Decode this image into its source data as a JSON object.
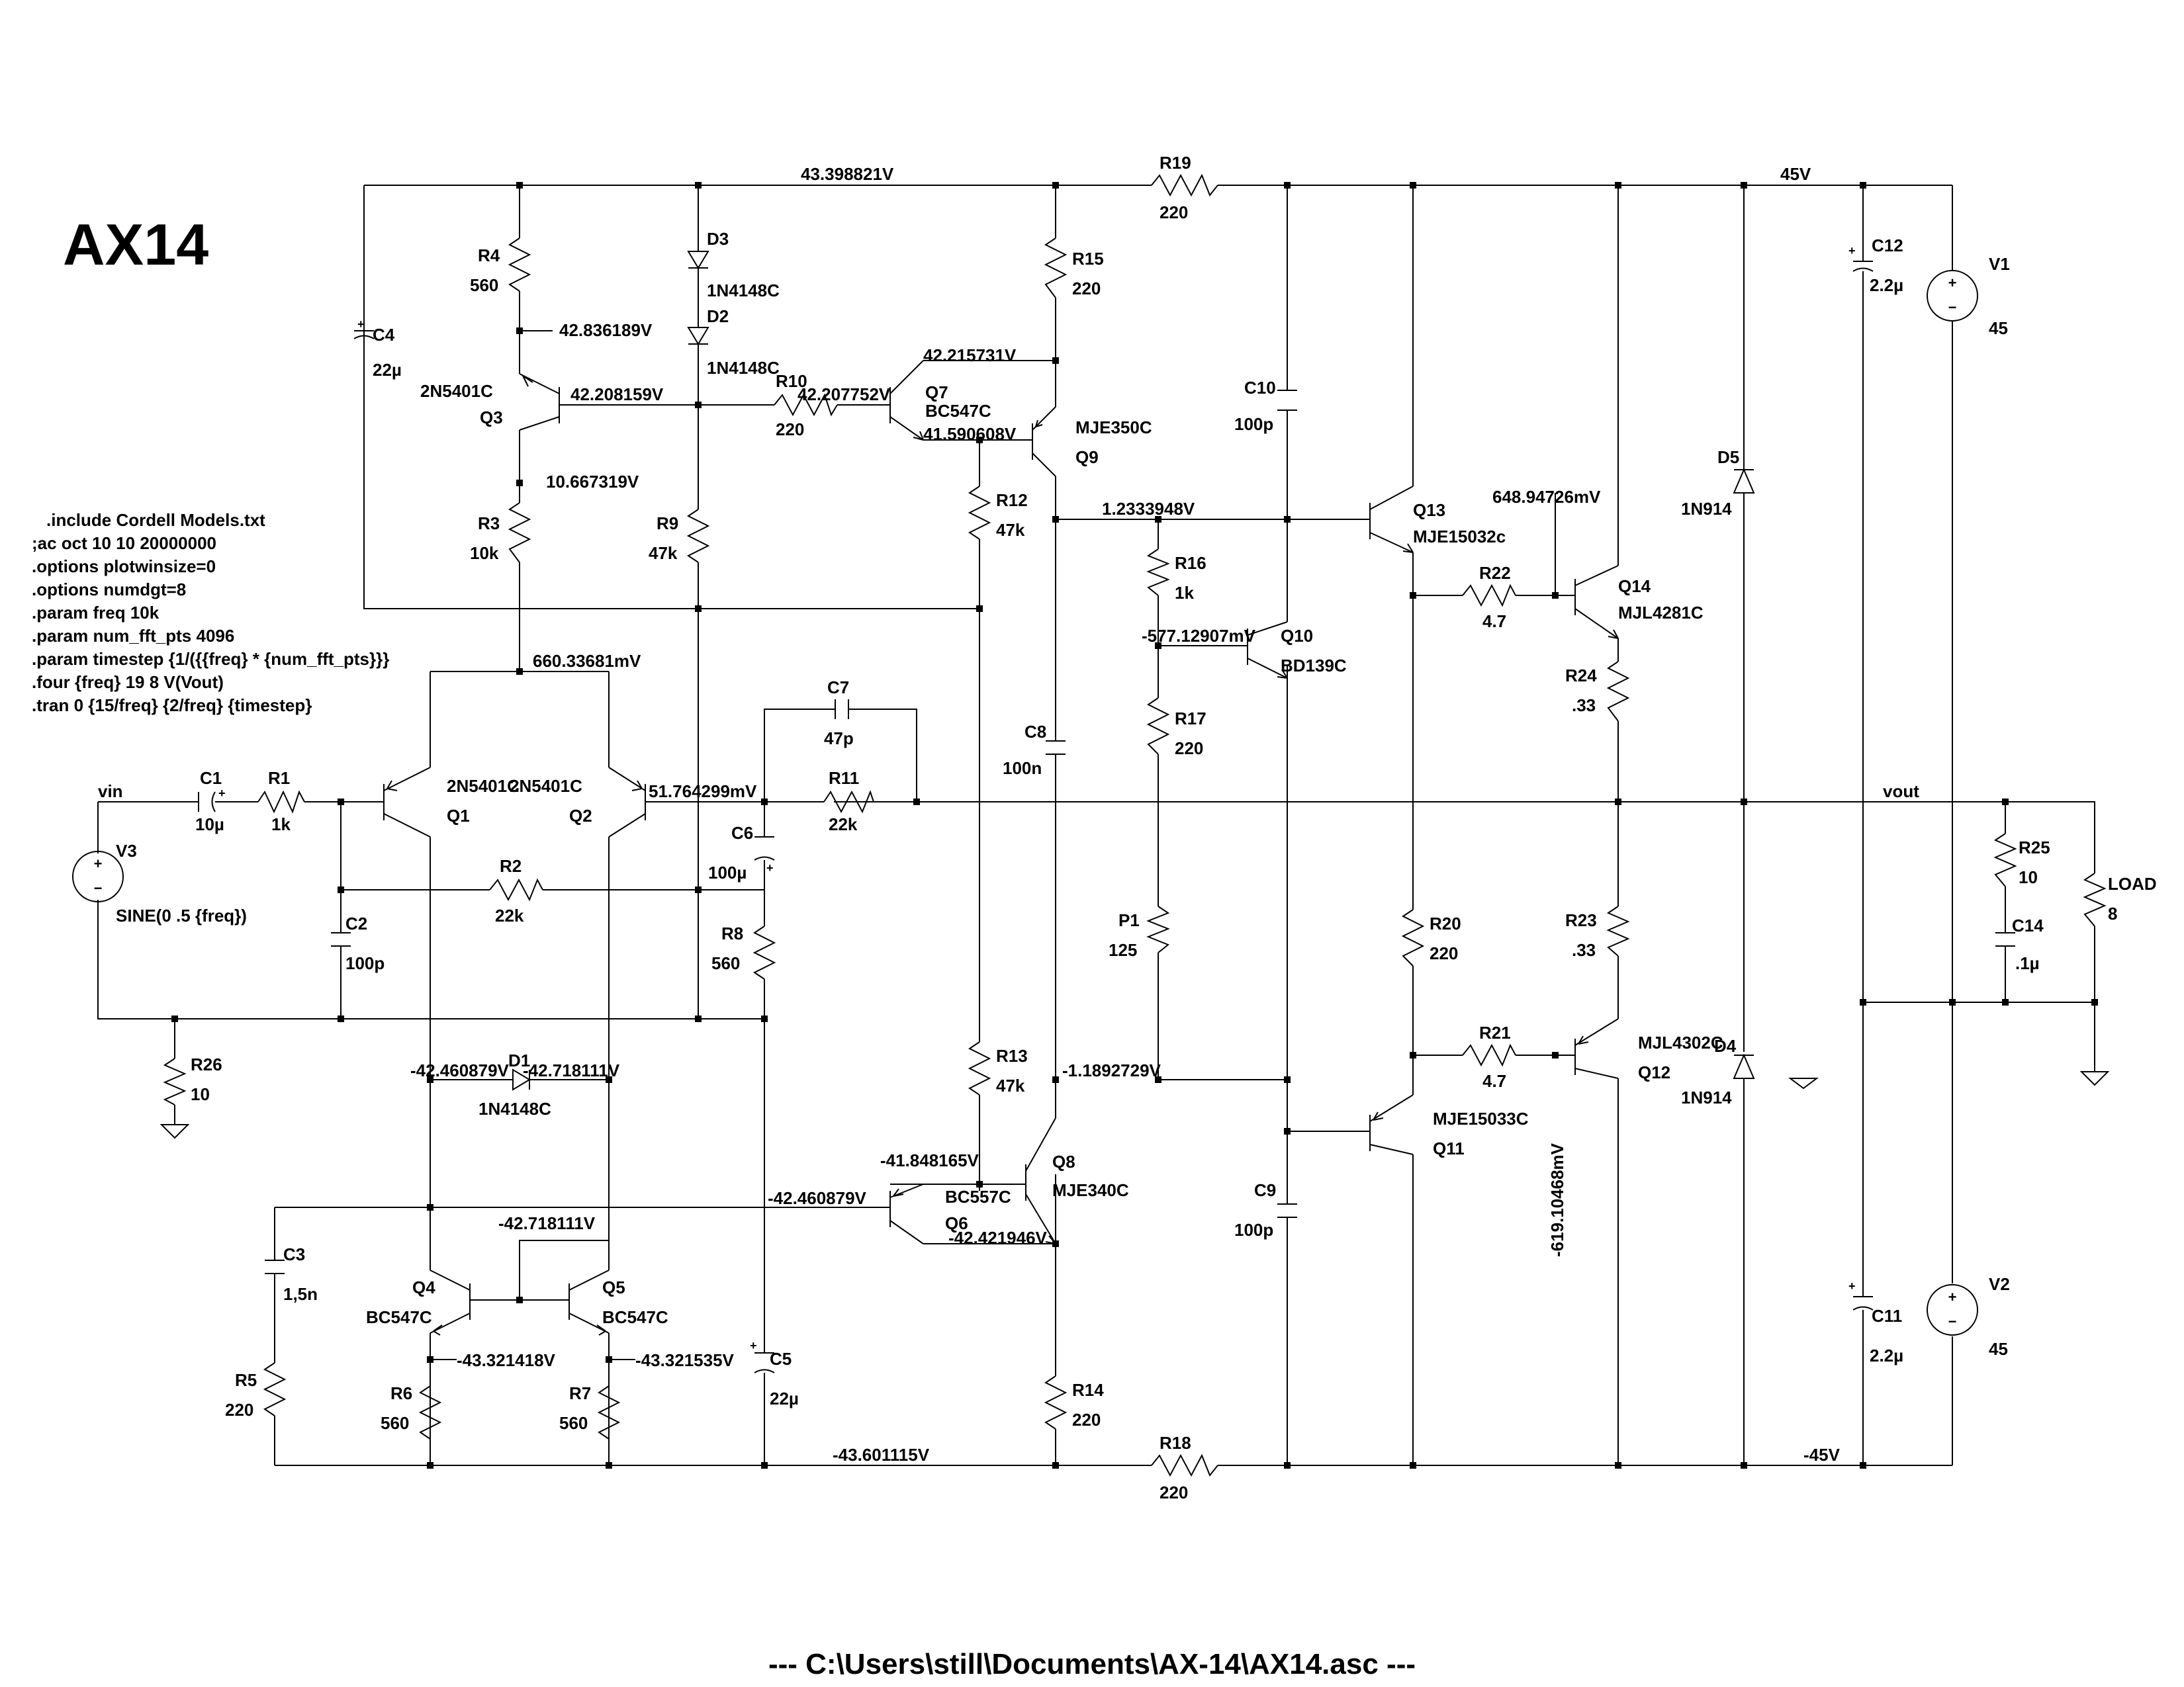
{
  "title": "AX14",
  "footer": "---  C:\\Users\\still\\Documents\\AX-14\\AX14.asc  ---",
  "directives": [
    ".include Cordell Models.txt",
    ";ac oct 10 10 20000000",
    ".options plotwinsize=0",
    ".options numdgt=8",
    ".param freq 10k",
    ".param num_fft_pts 4096",
    ".param timestep {1/({{freq} * {num_fft_pts}}}",
    ".four {freq} 19 8 V(Vout)",
    ".tran 0 {15/freq} {2/freq} {timestep}"
  ],
  "components": {
    "R4": {
      "name": "R4",
      "value": "560"
    },
    "R3": {
      "name": "R3",
      "value": "10k"
    },
    "R9": {
      "name": "R9",
      "value": "47k"
    },
    "R10": {
      "name": "R10",
      "value": "220"
    },
    "R15": {
      "name": "R15",
      "value": "220"
    },
    "R12": {
      "name": "R12",
      "value": "47k"
    },
    "R19": {
      "name": "R19",
      "value": "220"
    },
    "R16": {
      "name": "R16",
      "value": "1k"
    },
    "R17": {
      "name": "R17",
      "value": "220"
    },
    "P1": {
      "name": "P1",
      "value": "125"
    },
    "R22": {
      "name": "R22",
      "value": "4.7"
    },
    "R24": {
      "name": "R24",
      "value": ".33"
    },
    "R23": {
      "name": "R23",
      "value": ".33"
    },
    "R20": {
      "name": "R20",
      "value": "220"
    },
    "R21": {
      "name": "R21",
      "value": "4.7"
    },
    "R25": {
      "name": "R25",
      "value": "10"
    },
    "LOAD": {
      "name": "LOAD",
      "value": "8"
    },
    "R1": {
      "name": "R1",
      "value": "1k"
    },
    "R2": {
      "name": "R2",
      "value": "22k"
    },
    "R11": {
      "name": "R11",
      "value": "22k"
    },
    "R8": {
      "name": "R8",
      "value": "560"
    },
    "R26": {
      "name": "R26",
      "value": "10"
    },
    "R13": {
      "name": "R13",
      "value": "47k"
    },
    "R14": {
      "name": "R14",
      "value": "220"
    },
    "R5": {
      "name": "R5",
      "value": "220"
    },
    "R6": {
      "name": "R6",
      "value": "560"
    },
    "R7": {
      "name": "R7",
      "value": "560"
    },
    "R18": {
      "name": "R18",
      "value": "220"
    },
    "C4": {
      "name": "C4",
      "value": "22µ"
    },
    "C10": {
      "name": "C10",
      "value": "100p"
    },
    "C12": {
      "name": "C12",
      "value": "2.2µ"
    },
    "C7": {
      "name": "C7",
      "value": "47p"
    },
    "C8": {
      "name": "C8",
      "value": "100n"
    },
    "C1": {
      "name": "C1",
      "value": "10µ"
    },
    "C2": {
      "name": "C2",
      "value": "100p"
    },
    "C6": {
      "name": "C6",
      "value": "100µ"
    },
    "C14": {
      "name": "C14",
      "value": ".1µ"
    },
    "C3": {
      "name": "C3",
      "value": "1,5n"
    },
    "C5": {
      "name": "C5",
      "value": "22µ"
    },
    "C9": {
      "name": "C9",
      "value": "100p"
    },
    "C11": {
      "name": "C11",
      "value": "2.2µ"
    },
    "D3": {
      "name": "D3",
      "value": "1N4148C"
    },
    "D2": {
      "name": "D2",
      "value": "1N4148C"
    },
    "D1": {
      "name": "D1",
      "value": "1N4148C"
    },
    "D5": {
      "name": "D5",
      "value": "1N914"
    },
    "D4": {
      "name": "D4",
      "value": "1N914"
    },
    "Q3": {
      "name": "Q3",
      "value": "2N5401C"
    },
    "Q7": {
      "name": "Q7",
      "value": "BC547C"
    },
    "Q9": {
      "name": "Q9",
      "value": "MJE350C"
    },
    "Q13": {
      "name": "Q13",
      "value": "MJE15032c"
    },
    "Q14": {
      "name": "Q14",
      "value": "MJL4281C"
    },
    "Q10": {
      "name": "Q10",
      "value": "BD139C"
    },
    "Q1": {
      "name": "Q1",
      "value": "2N5401C"
    },
    "Q2": {
      "name": "Q2",
      "value": "2N5401C"
    },
    "Q4": {
      "name": "Q4",
      "value": "BC547C"
    },
    "Q5": {
      "name": "Q5",
      "value": "BC547C"
    },
    "Q6": {
      "name": "Q6",
      "value": "BC557C"
    },
    "Q8": {
      "name": "Q8",
      "value": "MJE340C"
    },
    "Q11": {
      "name": "Q11",
      "value": "MJE15033C"
    },
    "Q12": {
      "name": "Q12",
      "value": "MJL4302C"
    },
    "V1": {
      "name": "V1",
      "value": "45"
    },
    "V2": {
      "name": "V2",
      "value": "45"
    },
    "V3": {
      "name": "V3",
      "value": "SINE(0 .5 {freq})"
    }
  },
  "nets": {
    "vin": "vin",
    "vout": "vout",
    "pos45": "45V",
    "neg45": "-45V",
    "top_rail": "43.398821V",
    "q3_emitter": "42.836189V",
    "q3_base": "42.208159V",
    "q3_collector": "10.667319V",
    "q7_base": "42.207752V",
    "q7_collector": "42.215731V",
    "q7_emitter": "41.590608V",
    "vas_out": "1.2333948V",
    "q14_base": "648.94726mV",
    "q10_base": "-577.12907mV",
    "ltp_tail": "660.33681mV",
    "fb_node": "51.764299mV",
    "d1_anode": "-42.460879V",
    "d1_cathode": "-42.718111V",
    "q8_base_left": "-41.848165V",
    "q6_base": "-42.460879V",
    "q4q5_base": "-42.718111V",
    "q8_emitter": "-42.421946V",
    "q9_collector_low": "-1.1892729V",
    "q12_base": "-619.10468mV",
    "q4_emitter": "-43.321418V",
    "q5_emitter": "-43.321535V",
    "bottom_rail": "-43.601115V"
  }
}
